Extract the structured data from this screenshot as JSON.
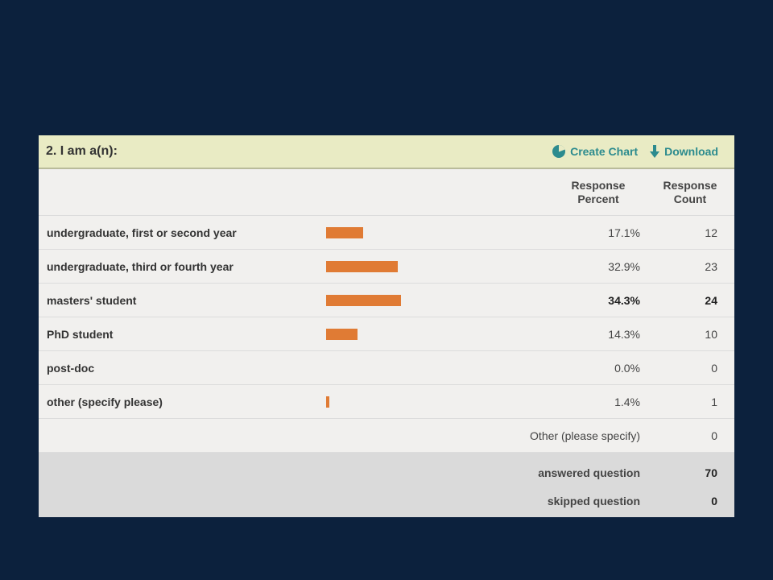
{
  "question": {
    "title": "2. I am a(n):",
    "create_chart_label": "Create Chart",
    "download_label": "Download",
    "accent_color": "#2c8b8e"
  },
  "columns": {
    "percent_header_line1": "Response",
    "percent_header_line2": "Percent",
    "count_header_line1": "Response",
    "count_header_line2": "Count"
  },
  "rows": [
    {
      "label": "undergraduate, first or second year",
      "percent": "17.1%",
      "count": "12",
      "fraction": 0.171,
      "bold": false
    },
    {
      "label": "undergraduate, third or fourth year",
      "percent": "32.9%",
      "count": "23",
      "fraction": 0.329,
      "bold": false
    },
    {
      "label": "masters' student",
      "percent": "34.3%",
      "count": "24",
      "fraction": 0.343,
      "bold": true
    },
    {
      "label": "PhD student",
      "percent": "14.3%",
      "count": "10",
      "fraction": 0.143,
      "bold": false
    },
    {
      "label": "post-doc",
      "percent": "0.0%",
      "count": "0",
      "fraction": 0.0,
      "bold": false
    },
    {
      "label": "other (specify please)",
      "percent": "1.4%",
      "count": "1",
      "fraction": 0.014,
      "bold": false
    }
  ],
  "other_specify": {
    "label": "Other (please specify)",
    "count": "0"
  },
  "summary": {
    "answered_label": "answered question",
    "answered_value": "70",
    "skipped_label": "skipped question",
    "skipped_value": "0"
  },
  "bar_color": "#e07b34"
}
